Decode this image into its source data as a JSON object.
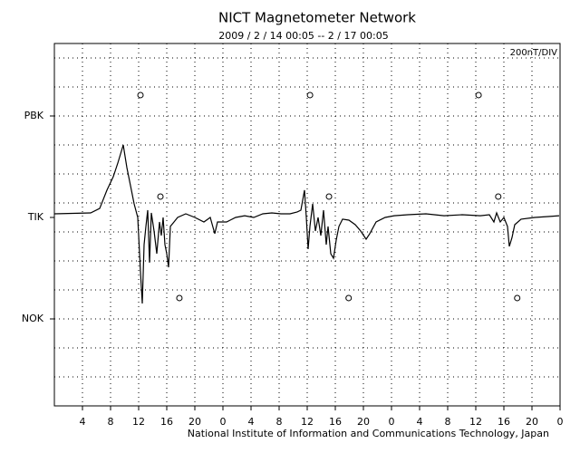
{
  "chart_data": {
    "type": "line",
    "title": "NICT Magnetometer Network",
    "subtitle": "2009 / 2 / 14  00:05 -- 2 / 17  00:05",
    "scale_label": "200nT/DIV",
    "footer": "National Institute of Information and Communications Technology, Japan",
    "xlim": [
      0,
      72
    ],
    "xticks": [
      {
        "value": 4,
        "label": "4"
      },
      {
        "value": 8,
        "label": "8"
      },
      {
        "value": 12,
        "label": "12"
      },
      {
        "value": 16,
        "label": "16"
      },
      {
        "value": 20,
        "label": "20"
      },
      {
        "value": 24,
        "label": "0"
      },
      {
        "value": 28,
        "label": "4"
      },
      {
        "value": 32,
        "label": "8"
      },
      {
        "value": 36,
        "label": "12"
      },
      {
        "value": 40,
        "label": "16"
      },
      {
        "value": 44,
        "label": "20"
      },
      {
        "value": 48,
        "label": "0"
      },
      {
        "value": 52,
        "label": "4"
      },
      {
        "value": 56,
        "label": "8"
      },
      {
        "value": 60,
        "label": "12"
      },
      {
        "value": 64,
        "label": "16"
      },
      {
        "value": 68,
        "label": "20"
      },
      {
        "value": 72,
        "label": "0"
      }
    ],
    "ylim": [
      -1300,
      1200
    ],
    "yticks": [
      {
        "value": 700,
        "label": "PBK"
      },
      {
        "value": 0,
        "label": "TIK"
      },
      {
        "value": -700,
        "label": "NOK"
      }
    ],
    "ygrid": [
      -1100,
      -900,
      -700,
      -500,
      -300,
      -100,
      100,
      300,
      500,
      700,
      900,
      1100
    ],
    "grid": true,
    "color": "#000000",
    "series": [
      {
        "name": "TIK",
        "color": "#000000",
        "x": [
          0,
          5.16,
          6.45,
          7.48,
          8.39,
          9.03,
          9.81,
          10.32,
          10.97,
          11.35,
          11.87,
          12.26,
          12.52,
          12.77,
          13.03,
          13.29,
          13.55,
          13.81,
          14.19,
          14.58,
          14.97,
          15.23,
          15.48,
          15.74,
          16.0,
          16.26,
          16.52,
          17.03,
          17.55,
          18.71,
          20.0,
          21.29,
          22.19,
          22.84,
          23.23,
          24.52,
          25.81,
          27.1,
          28.39,
          29.68,
          30.97,
          32.26,
          33.55,
          34.58,
          35.1,
          35.61,
          35.87,
          36.13,
          36.39,
          36.77,
          37.16,
          37.55,
          37.94,
          38.32,
          38.71,
          38.97,
          39.35,
          39.74,
          40.13,
          40.52,
          41.03,
          41.94,
          42.84,
          43.61,
          44.39,
          44.9,
          45.81,
          47.1,
          48.39,
          50.32,
          52.9,
          55.48,
          58.06,
          60.65,
          61.94,
          62.58,
          62.97,
          63.48,
          64.0,
          64.52,
          64.77,
          65.16,
          65.55,
          66.45,
          68.39,
          70.32,
          71.87
        ],
        "values": [
          25,
          31,
          62,
          188,
          281,
          375,
          500,
          344,
          188,
          94,
          0,
          -375,
          -594,
          -188,
          -62,
          50,
          -312,
          31,
          -94,
          -250,
          -31,
          -125,
          0,
          -188,
          -250,
          -344,
          -62,
          -31,
          0,
          25,
          0,
          -31,
          0,
          -112,
          -31,
          -31,
          0,
          12,
          0,
          25,
          31,
          25,
          25,
          38,
          50,
          188,
          0,
          -219,
          -62,
          94,
          -94,
          0,
          -125,
          50,
          -188,
          -62,
          -250,
          -281,
          -156,
          -62,
          -12,
          -19,
          -50,
          -94,
          -150,
          -112,
          -31,
          0,
          12,
          19,
          25,
          12,
          19,
          12,
          19,
          -31,
          31,
          -31,
          0,
          -62,
          -200,
          -138,
          -50,
          -12,
          0,
          6,
          12
        ]
      }
    ],
    "markers": {
      "x": [
        12.26,
        36.4,
        60.4,
        15.1,
        39.1,
        63.2,
        17.8,
        41.9,
        65.9
      ],
      "y": [
        844,
        844,
        844,
        144,
        144,
        144,
        -556,
        -556,
        -556
      ]
    }
  }
}
